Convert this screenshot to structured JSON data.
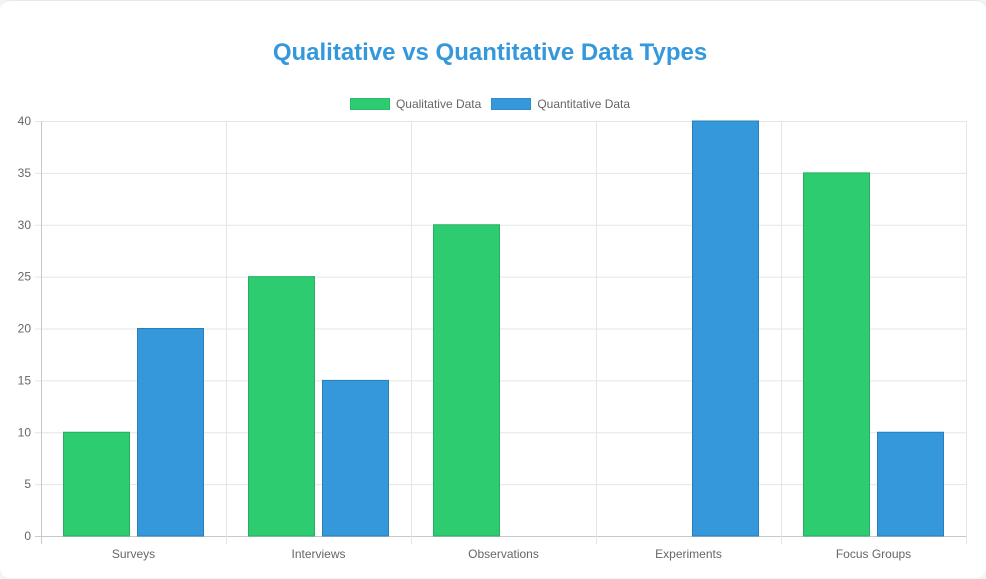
{
  "chart_data": {
    "type": "bar",
    "title": "Qualitative vs Quantitative Data Types",
    "categories": [
      "Surveys",
      "Interviews",
      "Observations",
      "Experiments",
      "Focus Groups"
    ],
    "series": [
      {
        "name": "Qualitative Data",
        "values": [
          10,
          25,
          30,
          0,
          35
        ],
        "color": "#2ecc71"
      },
      {
        "name": "Quantitative Data",
        "values": [
          20,
          15,
          0,
          40,
          10
        ],
        "color": "#3498db"
      }
    ],
    "ylim": [
      0,
      40
    ],
    "yticks": [
      "0",
      "5",
      "10",
      "15",
      "20",
      "25",
      "30",
      "35",
      "40"
    ],
    "grid": true,
    "legend_position": "top-center"
  }
}
